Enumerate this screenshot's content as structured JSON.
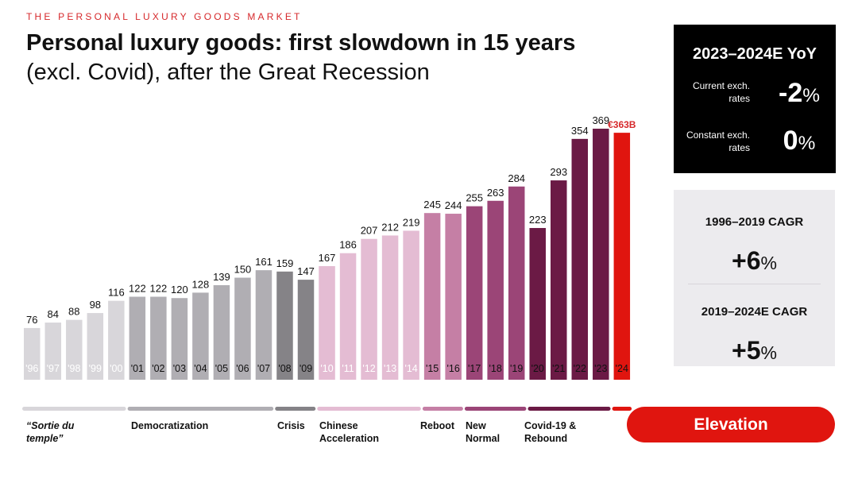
{
  "header": {
    "kicker": "THE PERSONAL LUXURY GOODS MARKET",
    "title_bold": "Personal luxury goods: first slowdown in 15 years",
    "title_rest": " (excl. Covid), after the Great Recession"
  },
  "chart_data": {
    "type": "bar",
    "title": "Personal luxury goods: first slowdown in 15 years (excl. Covid), after the Great Recession",
    "xlabel": "",
    "ylabel": "",
    "ylim": [
      0,
      400
    ],
    "categories": [
      "'96",
      "'97",
      "'98",
      "'99",
      "'00",
      "'01",
      "'02",
      "'03",
      "'04",
      "'05",
      "'06",
      "'07",
      "'08",
      "'09",
      "'10",
      "'11",
      "'12",
      "'13",
      "'14",
      "'15",
      "'16",
      "'17",
      "'18",
      "'19",
      "'20",
      "'21",
      "'22",
      "'23",
      "'24"
    ],
    "values": [
      76,
      84,
      88,
      98,
      116,
      122,
      122,
      120,
      128,
      139,
      150,
      161,
      159,
      147,
      167,
      186,
      207,
      212,
      219,
      245,
      244,
      255,
      263,
      284,
      223,
      293,
      354,
      369,
      363
    ],
    "value_labels": [
      "76",
      "84",
      "88",
      "98",
      "116",
      "122",
      "122",
      "120",
      "128",
      "139",
      "150",
      "161",
      "159",
      "147",
      "167",
      "186",
      "207",
      "212",
      "219",
      "245",
      "244",
      "255",
      "263",
      "284",
      "223",
      "293",
      "354",
      "369",
      "€363B"
    ],
    "bar_colors": [
      "#d8d6da",
      "#d8d6da",
      "#d8d6da",
      "#d8d6da",
      "#d8d6da",
      "#b0aeb3",
      "#b0aeb3",
      "#b0aeb3",
      "#b0aeb3",
      "#b0aeb3",
      "#b0aeb3",
      "#b0aeb3",
      "#858387",
      "#858387",
      "#e4bcd3",
      "#e4bcd3",
      "#e4bcd3",
      "#e4bcd3",
      "#e4bcd3",
      "#c57fa5",
      "#c57fa5",
      "#9b4577",
      "#9b4577",
      "#9b4577",
      "#6b1a45",
      "#6b1a45",
      "#6b1a45",
      "#6b1a45",
      "#e0150f"
    ],
    "label_color_highlight": "#d6282b",
    "eras": [
      {
        "name": "“Sortie du temple”",
        "from": 0,
        "to": 4,
        "color": "#d8d6da",
        "italic": true
      },
      {
        "name": "Democratization",
        "from": 5,
        "to": 11,
        "color": "#b0aeb3",
        "italic": false
      },
      {
        "name": "Crisis",
        "from": 12,
        "to": 13,
        "color": "#858387",
        "italic": false
      },
      {
        "name": "Chinese Acceleration",
        "from": 14,
        "to": 18,
        "color": "#e4bcd3",
        "italic": false
      },
      {
        "name": "Reboot",
        "from": 19,
        "to": 20,
        "color": "#c57fa5",
        "italic": false
      },
      {
        "name": "New Normal",
        "from": 21,
        "to": 23,
        "color": "#9b4577",
        "italic": false
      },
      {
        "name": "Covid-19 & Rebound",
        "from": 24,
        "to": 27,
        "color": "#6b1a45",
        "italic": false
      },
      {
        "name": "Elevation",
        "from": 28,
        "to": 28,
        "color": "#e0150f",
        "italic": false
      }
    ]
  },
  "yoy_box": {
    "heading": "2023–2024E YoY",
    "rows": [
      {
        "label": "Current exch. rates",
        "value": "-2",
        "unit": "%"
      },
      {
        "label": "Constant exch. rates",
        "value": "0",
        "unit": "%"
      }
    ]
  },
  "cagr_box": {
    "first": {
      "label": "1996–2019 CAGR",
      "value": "+6",
      "unit": "%"
    },
    "second": {
      "label": "2019–2024E CAGR",
      "value": "+5",
      "unit": "%"
    }
  },
  "era_labels": {
    "sortie": "“Sortie du temple”",
    "democratization": "Democratization",
    "crisis": "Crisis",
    "chinese": "Chinese Acceleration",
    "reboot": "Reboot",
    "new_normal": "New Normal",
    "covid": "Covid-19 & Rebound",
    "elevation": "Elevation"
  }
}
